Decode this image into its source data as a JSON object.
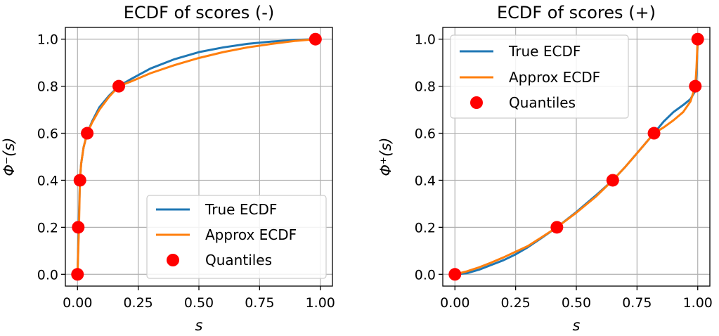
{
  "chart_data": [
    {
      "type": "line",
      "title": "ECDF of scores (-)",
      "xlabel": "s",
      "ylabel": "Φ⁻(s)",
      "xlim": [
        -0.05,
        1.05
      ],
      "ylim": [
        -0.05,
        1.05
      ],
      "xticks": [
        "0.00",
        "0.25",
        "0.50",
        "0.75",
        "1.00"
      ],
      "yticks": [
        "0.0",
        "0.2",
        "0.4",
        "0.6",
        "0.8",
        "1.0"
      ],
      "legend": {
        "position": "lower right",
        "entries": [
          "True ECDF",
          "Approx ECDF",
          "Quantiles"
        ]
      },
      "series": [
        {
          "name": "True ECDF",
          "color": "#1f77b4",
          "x": [
            0.0,
            0.003,
            0.006,
            0.01,
            0.015,
            0.025,
            0.04,
            0.06,
            0.09,
            0.13,
            0.17,
            0.22,
            0.3,
            0.4,
            0.5,
            0.6,
            0.7,
            0.8,
            0.9,
            0.98
          ],
          "y": [
            0.0,
            0.12,
            0.25,
            0.4,
            0.47,
            0.54,
            0.6,
            0.65,
            0.71,
            0.76,
            0.8,
            0.83,
            0.875,
            0.915,
            0.945,
            0.965,
            0.98,
            0.99,
            0.997,
            1.0
          ]
        },
        {
          "name": "Approx ECDF",
          "color": "#ff7f0e",
          "x": [
            0.0,
            0.003,
            0.006,
            0.01,
            0.015,
            0.025,
            0.04,
            0.06,
            0.09,
            0.13,
            0.17,
            0.22,
            0.3,
            0.4,
            0.5,
            0.6,
            0.7,
            0.8,
            0.9,
            0.98
          ],
          "y": [
            0.0,
            0.1,
            0.2,
            0.4,
            0.47,
            0.54,
            0.6,
            0.645,
            0.7,
            0.755,
            0.8,
            0.82,
            0.855,
            0.89,
            0.92,
            0.945,
            0.965,
            0.98,
            0.993,
            1.0
          ]
        }
      ],
      "quantiles": {
        "name": "Quantiles",
        "color": "#ff0000",
        "x": [
          0.0,
          0.003,
          0.01,
          0.04,
          0.17,
          0.98
        ],
        "y": [
          0.0,
          0.2,
          0.4,
          0.6,
          0.8,
          1.0
        ]
      }
    },
    {
      "type": "line",
      "title": "ECDF of scores (+)",
      "xlabel": "s",
      "ylabel": "Φ⁺(s)",
      "xlim": [
        -0.05,
        1.05
      ],
      "ylim": [
        -0.05,
        1.05
      ],
      "xticks": [
        "0.00",
        "0.25",
        "0.50",
        "0.75",
        "1.00"
      ],
      "yticks": [
        "0.0",
        "0.2",
        "0.4",
        "0.6",
        "0.8",
        "1.0"
      ],
      "legend": {
        "position": "upper left",
        "entries": [
          "True ECDF",
          "Approx ECDF",
          "Quantiles"
        ]
      },
      "series": [
        {
          "name": "True ECDF",
          "color": "#1f77b4",
          "x": [
            0.0,
            0.05,
            0.1,
            0.15,
            0.2,
            0.25,
            0.3,
            0.35,
            0.42,
            0.5,
            0.58,
            0.65,
            0.7,
            0.75,
            0.82,
            0.86,
            0.9,
            0.94,
            0.97,
            0.99,
            0.995,
            1.0
          ],
          "y": [
            0.0,
            0.005,
            0.02,
            0.04,
            0.06,
            0.085,
            0.115,
            0.15,
            0.2,
            0.265,
            0.335,
            0.4,
            0.455,
            0.515,
            0.6,
            0.65,
            0.69,
            0.72,
            0.745,
            0.78,
            0.85,
            1.0
          ]
        },
        {
          "name": "Approx ECDF",
          "color": "#ff7f0e",
          "x": [
            0.0,
            0.05,
            0.1,
            0.15,
            0.2,
            0.25,
            0.3,
            0.35,
            0.42,
            0.5,
            0.58,
            0.65,
            0.7,
            0.75,
            0.82,
            0.86,
            0.9,
            0.94,
            0.97,
            0.99,
            0.995,
            1.0
          ],
          "y": [
            0.0,
            0.013,
            0.03,
            0.05,
            0.072,
            0.096,
            0.12,
            0.153,
            0.2,
            0.262,
            0.33,
            0.4,
            0.455,
            0.515,
            0.6,
            0.625,
            0.655,
            0.69,
            0.735,
            0.8,
            0.88,
            1.0
          ]
        }
      ],
      "quantiles": {
        "name": "Quantiles",
        "color": "#ff0000",
        "x": [
          0.0,
          0.42,
          0.65,
          0.82,
          0.99,
          1.0
        ],
        "y": [
          0.0,
          0.2,
          0.4,
          0.6,
          0.8,
          1.0
        ]
      }
    }
  ]
}
